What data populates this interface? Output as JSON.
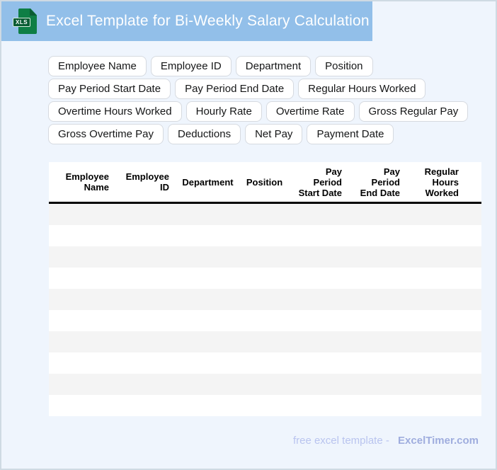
{
  "header": {
    "title": "Excel Template for Bi-Weekly Salary Calculation",
    "file_badge": "XLS",
    "band_color": "#92bfe9",
    "icon_color": "#0e7e45",
    "icon_badge_color": "#0a5c33"
  },
  "page": {
    "background_color": "#eff5fd",
    "border_color": "#cfdae3"
  },
  "chips": [
    "Employee Name",
    "Employee ID",
    "Department",
    "Position",
    "Pay Period Start Date",
    "Pay Period End Date",
    "Regular Hours Worked",
    "Overtime Hours Worked",
    "Hourly Rate",
    "Overtime Rate",
    "Gross Regular Pay",
    "Gross Overtime Pay",
    "Deductions",
    "Net Pay",
    "Payment Date"
  ],
  "table": {
    "columns": [
      "Employee\nName",
      "Employee\nID",
      "Department",
      "Position",
      "Pay\nPeriod\nStart Date",
      "Pay\nPeriod\nEnd Date",
      "Regular\nHours\nWorked"
    ],
    "row_count": 10,
    "alt_row_color": "#f4f4f4",
    "rows": []
  },
  "footer": {
    "text": "free excel template -",
    "brand": "ExcelTimer.com",
    "text_color": "#b9c4ef",
    "brand_color": "#9fadde"
  }
}
